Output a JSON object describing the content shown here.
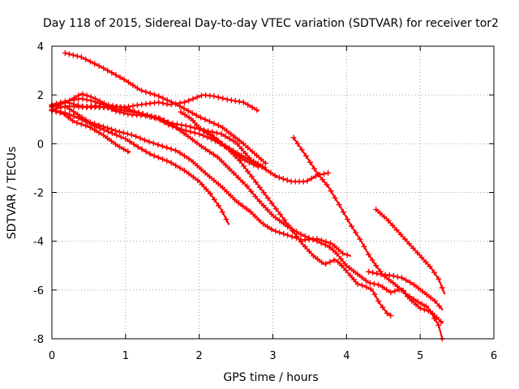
{
  "chart_data": {
    "type": "scatter",
    "title": "Day 118 of 2015, Sidereal Day-to-day VTEC variation (SDTVAR) for receiver tor2",
    "xlabel": "GPS time / hours",
    "ylabel": "SDTVAR / TECUs",
    "xlim": [
      0,
      6
    ],
    "ylim": [
      -8,
      4
    ],
    "xticks": [
      "0",
      "1",
      "2",
      "3",
      "4",
      "5",
      "6"
    ],
    "yticks": [
      "-8",
      "-6",
      "-4",
      "-2",
      "0",
      "2",
      "4"
    ],
    "grid": true,
    "color": "#ff0000",
    "marker": "plus",
    "series": [
      {
        "name": "s1",
        "points": [
          [
            0.18,
            3.72
          ],
          [
            0.4,
            3.55
          ],
          [
            0.7,
            3.1
          ],
          [
            1.0,
            2.6
          ],
          [
            1.2,
            2.2
          ],
          [
            1.45,
            1.95
          ],
          [
            1.7,
            1.6
          ],
          [
            2.0,
            1.1
          ],
          [
            2.3,
            0.7
          ],
          [
            2.6,
            0.0
          ],
          [
            2.9,
            -0.8
          ]
        ]
      },
      {
        "name": "s2",
        "points": [
          [
            0.0,
            1.55
          ],
          [
            0.2,
            1.7
          ],
          [
            0.45,
            1.5
          ],
          [
            0.7,
            1.5
          ],
          [
            1.0,
            1.5
          ],
          [
            1.2,
            1.6
          ],
          [
            1.45,
            1.7
          ],
          [
            1.6,
            1.6
          ],
          [
            1.8,
            1.7
          ],
          [
            2.05,
            2.0
          ],
          [
            2.2,
            1.95
          ],
          [
            2.4,
            1.8
          ],
          [
            2.6,
            1.7
          ],
          [
            2.8,
            1.35
          ]
        ]
      },
      {
        "name": "s3",
        "points": [
          [
            0.0,
            1.4
          ],
          [
            0.2,
            1.55
          ],
          [
            0.4,
            1.5
          ],
          [
            0.6,
            1.55
          ],
          [
            0.8,
            1.45
          ],
          [
            1.0,
            1.35
          ],
          [
            1.2,
            1.25
          ],
          [
            1.45,
            1.05
          ],
          [
            1.6,
            0.85
          ],
          [
            1.8,
            0.75
          ],
          [
            2.0,
            0.6
          ],
          [
            2.3,
            0.4
          ],
          [
            2.5,
            0.05
          ],
          [
            2.7,
            -0.65
          ],
          [
            2.9,
            -1.0
          ]
        ]
      },
      {
        "name": "s4",
        "points": [
          [
            0.0,
            1.5
          ],
          [
            0.2,
            1.7
          ],
          [
            0.4,
            2.05
          ],
          [
            0.55,
            1.9
          ],
          [
            0.75,
            1.6
          ],
          [
            1.0,
            1.45
          ],
          [
            1.25,
            1.2
          ],
          [
            1.45,
            1.0
          ],
          [
            1.6,
            0.75
          ],
          [
            1.8,
            0.55
          ],
          [
            2.0,
            0.4
          ],
          [
            2.2,
            0.15
          ],
          [
            2.4,
            -0.2
          ],
          [
            2.6,
            -0.65
          ],
          [
            2.8,
            -0.95
          ]
        ]
      },
      {
        "name": "s5",
        "points": [
          [
            0.0,
            1.4
          ],
          [
            0.2,
            1.25
          ],
          [
            0.4,
            1.0
          ],
          [
            0.6,
            0.7
          ],
          [
            0.8,
            0.45
          ],
          [
            1.0,
            0.2
          ],
          [
            1.15,
            -0.1
          ],
          [
            1.35,
            -0.45
          ],
          [
            1.6,
            -0.75
          ],
          [
            1.8,
            -1.1
          ],
          [
            2.0,
            -1.55
          ],
          [
            2.15,
            -2.05
          ],
          [
            2.3,
            -2.7
          ],
          [
            2.4,
            -3.3
          ]
        ]
      },
      {
        "name": "s6",
        "points": [
          [
            0.0,
            1.35
          ],
          [
            0.15,
            1.25
          ],
          [
            0.3,
            0.9
          ],
          [
            0.5,
            0.7
          ],
          [
            0.7,
            0.35
          ],
          [
            0.9,
            -0.1
          ],
          [
            1.05,
            -0.35
          ]
        ]
      },
      {
        "name": "s7",
        "points": [
          [
            0.0,
            1.55
          ],
          [
            0.2,
            1.5
          ],
          [
            0.35,
            1.2
          ],
          [
            0.5,
            0.9
          ],
          [
            0.7,
            0.7
          ],
          [
            0.9,
            0.5
          ],
          [
            1.1,
            0.35
          ],
          [
            1.3,
            0.1
          ],
          [
            1.5,
            -0.1
          ],
          [
            1.7,
            -0.3
          ],
          [
            1.9,
            -0.7
          ],
          [
            2.1,
            -1.25
          ],
          [
            2.3,
            -1.75
          ],
          [
            2.5,
            -2.35
          ],
          [
            2.7,
            -2.8
          ],
          [
            2.85,
            -3.25
          ],
          [
            3.0,
            -3.55
          ],
          [
            3.2,
            -3.75
          ],
          [
            3.4,
            -3.95
          ],
          [
            3.6,
            -3.9
          ],
          [
            3.8,
            -4.1
          ],
          [
            3.95,
            -4.5
          ],
          [
            4.05,
            -4.6
          ]
        ]
      },
      {
        "name": "s8",
        "points": [
          [
            0.0,
            1.6
          ],
          [
            0.2,
            1.75
          ],
          [
            0.4,
            1.85
          ],
          [
            0.55,
            1.75
          ],
          [
            0.7,
            1.6
          ],
          [
            0.85,
            1.35
          ],
          [
            1.05,
            1.2
          ],
          [
            1.25,
            1.15
          ],
          [
            1.45,
            1.05
          ],
          [
            1.65,
            0.75
          ],
          [
            1.85,
            0.3
          ],
          [
            2.05,
            -0.15
          ],
          [
            2.25,
            -0.55
          ],
          [
            2.45,
            -1.15
          ],
          [
            2.65,
            -1.75
          ],
          [
            2.8,
            -2.3
          ],
          [
            3.0,
            -2.95
          ],
          [
            3.2,
            -3.4
          ],
          [
            3.4,
            -3.75
          ],
          [
            3.6,
            -4.0
          ],
          [
            3.75,
            -4.2
          ],
          [
            3.85,
            -4.45
          ],
          [
            4.0,
            -5.0
          ],
          [
            4.15,
            -5.35
          ],
          [
            4.3,
            -5.7
          ],
          [
            4.45,
            -5.8
          ],
          [
            4.6,
            -6.1
          ],
          [
            4.75,
            -5.95
          ],
          [
            4.85,
            -6.35
          ],
          [
            5.0,
            -6.75
          ],
          [
            5.15,
            -6.9
          ],
          [
            5.3,
            -7.35
          ]
        ]
      },
      {
        "name": "s9",
        "points": [
          [
            1.75,
            1.3
          ],
          [
            1.9,
            1.0
          ],
          [
            2.0,
            0.65
          ],
          [
            2.15,
            0.35
          ],
          [
            2.3,
            0.0
          ],
          [
            2.5,
            -0.35
          ],
          [
            2.7,
            -0.7
          ],
          [
            2.85,
            -0.95
          ],
          [
            3.05,
            -1.35
          ],
          [
            3.25,
            -1.55
          ],
          [
            3.45,
            -1.55
          ],
          [
            3.6,
            -1.3
          ],
          [
            3.75,
            -1.2
          ]
        ]
      },
      {
        "name": "s10",
        "points": [
          [
            2.15,
            0.4
          ],
          [
            2.35,
            -0.1
          ],
          [
            2.55,
            -0.7
          ],
          [
            2.75,
            -1.5
          ],
          [
            2.95,
            -2.3
          ],
          [
            3.1,
            -2.9
          ],
          [
            3.25,
            -3.5
          ],
          [
            3.4,
            -4.1
          ],
          [
            3.55,
            -4.6
          ],
          [
            3.7,
            -4.95
          ],
          [
            3.85,
            -4.75
          ],
          [
            3.95,
            -5.05
          ],
          [
            4.05,
            -5.4
          ],
          [
            4.15,
            -5.75
          ],
          [
            4.25,
            -5.85
          ],
          [
            4.35,
            -6.0
          ],
          [
            4.45,
            -6.55
          ],
          [
            4.55,
            -6.95
          ],
          [
            4.6,
            -7.05
          ]
        ]
      },
      {
        "name": "s11",
        "points": [
          [
            3.28,
            0.25
          ],
          [
            3.45,
            -0.5
          ],
          [
            3.6,
            -1.2
          ],
          [
            3.75,
            -1.75
          ],
          [
            3.9,
            -2.5
          ],
          [
            4.05,
            -3.3
          ],
          [
            4.2,
            -4.0
          ],
          [
            4.3,
            -4.55
          ],
          [
            4.4,
            -5.0
          ],
          [
            4.5,
            -5.4
          ],
          [
            4.65,
            -5.75
          ],
          [
            4.8,
            -6.15
          ],
          [
            4.95,
            -6.45
          ],
          [
            5.1,
            -6.7
          ],
          [
            5.25,
            -7.45
          ],
          [
            5.3,
            -8.0
          ]
        ]
      },
      {
        "name": "s12",
        "points": [
          [
            4.3,
            -5.25
          ],
          [
            4.45,
            -5.35
          ],
          [
            4.6,
            -5.4
          ],
          [
            4.75,
            -5.5
          ],
          [
            4.9,
            -5.75
          ],
          [
            5.05,
            -6.1
          ],
          [
            5.2,
            -6.45
          ],
          [
            5.3,
            -6.8
          ]
        ]
      },
      {
        "name": "s13",
        "points": [
          [
            4.4,
            -2.7
          ],
          [
            4.55,
            -3.1
          ],
          [
            4.7,
            -3.6
          ],
          [
            4.85,
            -4.1
          ],
          [
            5.0,
            -4.6
          ],
          [
            5.15,
            -5.1
          ],
          [
            5.25,
            -5.55
          ],
          [
            5.33,
            -6.15
          ]
        ]
      }
    ]
  }
}
